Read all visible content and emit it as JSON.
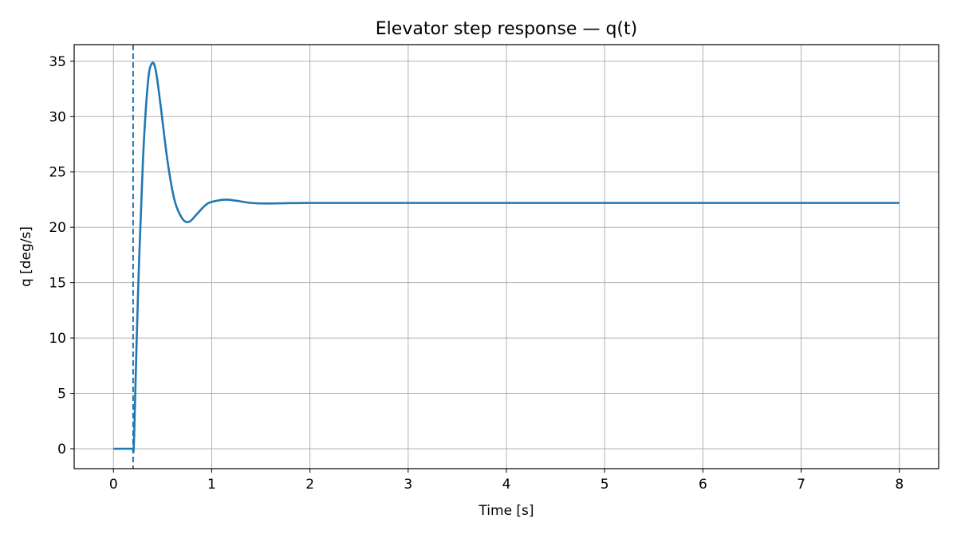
{
  "chart_data": {
    "type": "line",
    "title": "Elevator step response — q(t)",
    "xlabel": "Time [s]",
    "ylabel": "q [deg/s]",
    "xlim": [
      -0.4,
      8.4
    ],
    "ylim": [
      -1.8,
      36.5
    ],
    "xticks": [
      0,
      1,
      2,
      3,
      4,
      5,
      6,
      7,
      8
    ],
    "xtick_labels": [
      "0",
      "1",
      "2",
      "3",
      "4",
      "5",
      "6",
      "7",
      "8"
    ],
    "yticks": [
      0,
      5,
      10,
      15,
      20,
      25,
      30,
      35
    ],
    "ytick_labels": [
      "0",
      "5",
      "10",
      "15",
      "20",
      "25",
      "30",
      "35"
    ],
    "grid": true,
    "vertical_marker": {
      "x": 0.2,
      "style": "dashed",
      "color": "#1f77b4"
    },
    "series": [
      {
        "color": "#1f77b4",
        "x": [
          0,
          0.2,
          0.21,
          0.25,
          0.3,
          0.35,
          0.39,
          0.43,
          0.48,
          0.55,
          0.62,
          0.7,
          0.77,
          0.85,
          0.95,
          1.05,
          1.15,
          1.25,
          1.4,
          1.55,
          1.75,
          2,
          3,
          4,
          5,
          6,
          7,
          8
        ],
        "y": [
          0,
          0,
          1,
          14,
          26,
          33,
          34.8,
          34.2,
          31,
          26,
          22.5,
          20.8,
          20.5,
          21.2,
          22.1,
          22.4,
          22.5,
          22.4,
          22.2,
          22.15,
          22.18,
          22.2,
          22.2,
          22.2,
          22.2,
          22.2,
          22.2,
          22.2
        ]
      }
    ]
  }
}
